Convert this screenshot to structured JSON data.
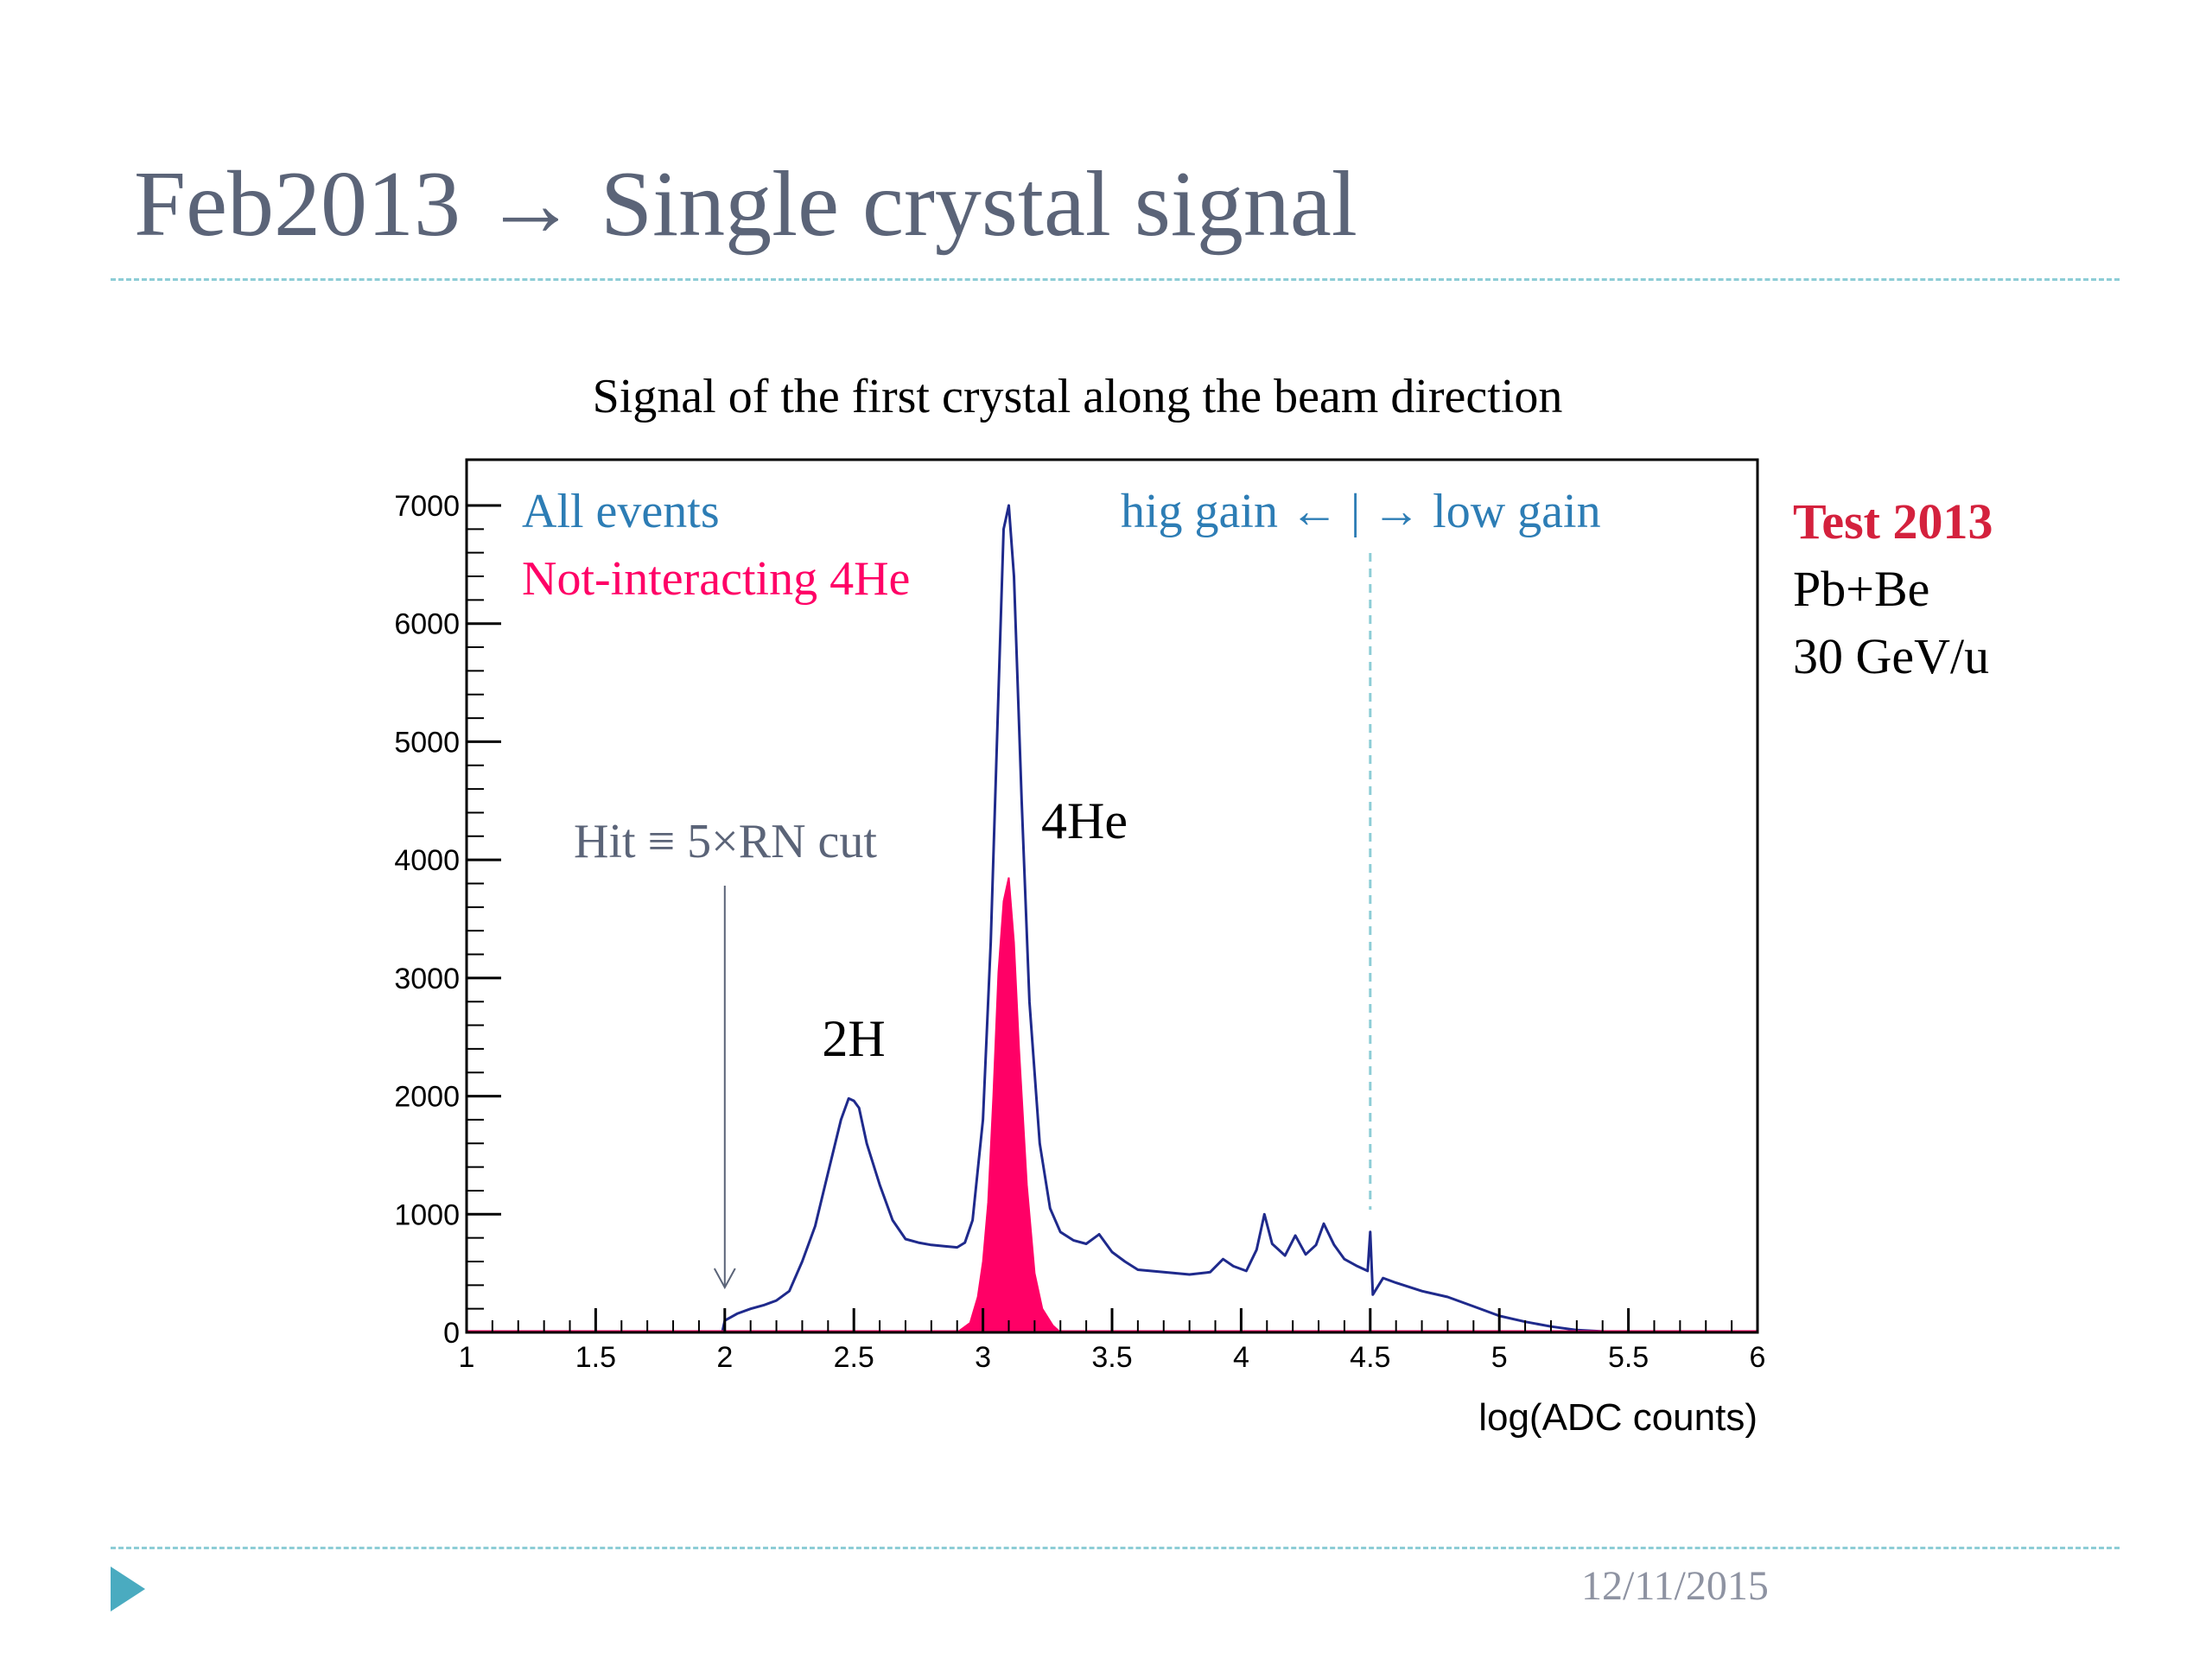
{
  "slide": {
    "title": "Feb2013 → Single crystal signal",
    "date": "12/11/2015"
  },
  "side_info": {
    "test_label": "Test 2013",
    "system": "Pb+Be",
    "energy": "30 GeV/u"
  },
  "colors": {
    "title": "#5b6478",
    "rule": "#8dcdd6",
    "all_events": "#1f2a8c",
    "all_events_legend": "#2d7db5",
    "not_interacting": "#ff0066",
    "hit_annotation": "#5b6478",
    "gain_line": "#8dcdd6",
    "test_label": "#d4213d",
    "nav_arrow": "#4aabc0"
  },
  "chart_data": {
    "type": "histogram",
    "title": "Signal of the first crystal along the beam direction",
    "xlabel": "log(ADC counts)",
    "ylabel": "",
    "xlim": [
      1,
      6
    ],
    "ylim": [
      0,
      7000
    ],
    "x_ticks": [
      "1",
      "1.5",
      "2",
      "2.5",
      "3",
      "3.5",
      "4",
      "4.5",
      "5",
      "5.5",
      "6"
    ],
    "y_ticks": [
      "0",
      "1000",
      "2000",
      "3000",
      "4000",
      "5000",
      "6000",
      "7000"
    ],
    "series": [
      {
        "name": "All events",
        "style": "step-line",
        "points": [
          [
            1.0,
            0
          ],
          [
            1.99,
            0
          ],
          [
            2.0,
            100
          ],
          [
            2.05,
            160
          ],
          [
            2.1,
            200
          ],
          [
            2.15,
            230
          ],
          [
            2.2,
            270
          ],
          [
            2.25,
            350
          ],
          [
            2.3,
            600
          ],
          [
            2.35,
            900
          ],
          [
            2.4,
            1350
          ],
          [
            2.45,
            1800
          ],
          [
            2.48,
            1980
          ],
          [
            2.5,
            1960
          ],
          [
            2.52,
            1900
          ],
          [
            2.55,
            1600
          ],
          [
            2.6,
            1250
          ],
          [
            2.65,
            950
          ],
          [
            2.7,
            790
          ],
          [
            2.75,
            760
          ],
          [
            2.8,
            740
          ],
          [
            2.85,
            730
          ],
          [
            2.9,
            720
          ],
          [
            2.93,
            760
          ],
          [
            2.96,
            950
          ],
          [
            3.0,
            1800
          ],
          [
            3.03,
            3300
          ],
          [
            3.06,
            5400
          ],
          [
            3.08,
            6800
          ],
          [
            3.1,
            7000
          ],
          [
            3.12,
            6400
          ],
          [
            3.15,
            4500
          ],
          [
            3.18,
            2800
          ],
          [
            3.22,
            1600
          ],
          [
            3.26,
            1050
          ],
          [
            3.3,
            850
          ],
          [
            3.35,
            780
          ],
          [
            3.4,
            750
          ],
          [
            3.45,
            830
          ],
          [
            3.5,
            680
          ],
          [
            3.55,
            600
          ],
          [
            3.6,
            530
          ],
          [
            3.7,
            510
          ],
          [
            3.8,
            490
          ],
          [
            3.88,
            510
          ],
          [
            3.93,
            620
          ],
          [
            3.97,
            560
          ],
          [
            4.02,
            520
          ],
          [
            4.06,
            700
          ],
          [
            4.09,
            1000
          ],
          [
            4.12,
            750
          ],
          [
            4.17,
            650
          ],
          [
            4.21,
            820
          ],
          [
            4.25,
            660
          ],
          [
            4.29,
            740
          ],
          [
            4.32,
            920
          ],
          [
            4.36,
            740
          ],
          [
            4.4,
            620
          ],
          [
            4.45,
            560
          ],
          [
            4.49,
            520
          ],
          [
            4.5,
            850
          ],
          [
            4.51,
            320
          ],
          [
            4.55,
            460
          ],
          [
            4.6,
            420
          ],
          [
            4.7,
            350
          ],
          [
            4.8,
            300
          ],
          [
            4.9,
            220
          ],
          [
            5.0,
            140
          ],
          [
            5.1,
            90
          ],
          [
            5.2,
            50
          ],
          [
            5.3,
            20
          ],
          [
            5.4,
            8
          ],
          [
            5.5,
            0
          ],
          [
            6.0,
            0
          ]
        ]
      },
      {
        "name": "Not-interacting 4He",
        "style": "filled",
        "points": [
          [
            1.0,
            0
          ],
          [
            2.9,
            0
          ],
          [
            2.95,
            80
          ],
          [
            2.98,
            300
          ],
          [
            3.0,
            600
          ],
          [
            3.02,
            1100
          ],
          [
            3.04,
            2000
          ],
          [
            3.06,
            3050
          ],
          [
            3.08,
            3650
          ],
          [
            3.1,
            3850
          ],
          [
            3.12,
            3300
          ],
          [
            3.14,
            2400
          ],
          [
            3.17,
            1250
          ],
          [
            3.2,
            500
          ],
          [
            3.23,
            200
          ],
          [
            3.27,
            60
          ],
          [
            3.3,
            0
          ],
          [
            6.0,
            0
          ]
        ]
      }
    ],
    "annotations": {
      "hit_cut": {
        "text": "Hit ≡ 5×RN cut",
        "arrow_x": 2.0
      },
      "peak_2h": {
        "text": "2H",
        "x": 2.5,
        "y": 2000
      },
      "peak_4he": {
        "text": "4He",
        "x": 3.1,
        "y": 7000
      },
      "gain_boundary": {
        "text": "hig gain ← | → low gain",
        "x": 4.5
      }
    },
    "legend": [
      {
        "label": "All events",
        "color": "#2d7db5"
      },
      {
        "label": "Not-interacting 4He",
        "color": "#ff0066"
      }
    ],
    "legend_position": "top-left"
  }
}
